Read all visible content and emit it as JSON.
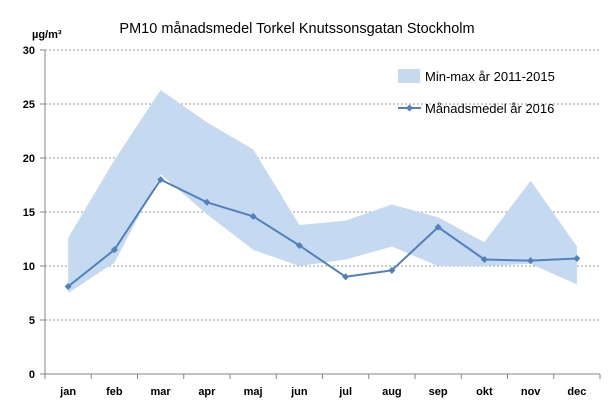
{
  "chart_data": {
    "type": "line",
    "title": "PM10 månadsmedel Torkel Knutssonsgatan Stockholm",
    "ylabel": "µg/m³",
    "xlabel": "",
    "ylim": [
      0,
      30
    ],
    "yticks": [
      0,
      5,
      10,
      15,
      20,
      25,
      30
    ],
    "grid": true,
    "legend_position": "top-right",
    "categories": [
      "jan",
      "feb",
      "mar",
      "apr",
      "maj",
      "jun",
      "jul",
      "aug",
      "sep",
      "okt",
      "nov",
      "dec"
    ],
    "band": {
      "name": "Min-max år 2011-2015",
      "color": "#c5d9f1",
      "min": [
        7.5,
        10.3,
        18.5,
        14.8,
        11.5,
        10.0,
        10.6,
        11.8,
        10.0,
        10.0,
        10.2,
        8.3
      ],
      "max": [
        12.6,
        19.8,
        26.3,
        23.3,
        20.8,
        13.8,
        14.2,
        15.7,
        14.5,
        12.2,
        17.9,
        11.8
      ]
    },
    "series": [
      {
        "name": "Månadsmedel år 2016",
        "color": "#4f81bd",
        "values": [
          8.1,
          11.5,
          18.0,
          15.9,
          14.6,
          11.9,
          9.0,
          9.6,
          13.6,
          10.6,
          10.5,
          10.7
        ]
      }
    ]
  }
}
